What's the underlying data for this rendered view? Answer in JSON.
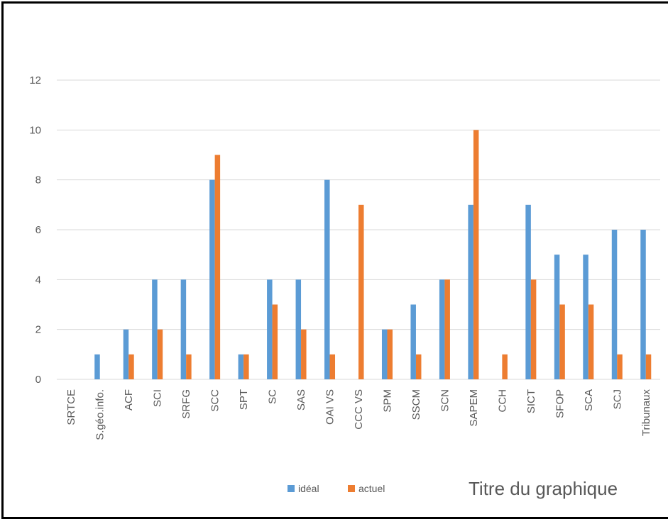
{
  "chart_data": {
    "type": "bar",
    "title": "Titre du graphique",
    "categories": [
      "SRTCE",
      "S.géo.info.",
      "ACF",
      "SCI",
      "SRFG",
      "SCC",
      "SPT",
      "SC",
      "SAS",
      "OAI VS",
      "CCC VS",
      "SPM",
      "SSCM",
      "SCN",
      "SAPEM",
      "CCH",
      "SICT",
      "SFOP",
      "SCA",
      "SCJ",
      "Tribunaux"
    ],
    "series": [
      {
        "name": "idéal",
        "color": "#5B9BD5",
        "values": [
          0,
          1,
          2,
          4,
          4,
          8,
          1,
          4,
          4,
          8,
          0,
          2,
          3,
          4,
          7,
          0,
          7,
          5,
          5,
          6,
          6
        ]
      },
      {
        "name": "actuel",
        "color": "#ED7D31",
        "values": [
          0,
          0,
          1,
          2,
          1,
          9,
          1,
          3,
          2,
          1,
          7,
          2,
          1,
          4,
          10,
          1,
          4,
          3,
          3,
          1,
          1
        ]
      }
    ],
    "ylim": [
      0,
      12
    ],
    "yticks": [
      0,
      2,
      4,
      6,
      8,
      10,
      12
    ],
    "grid": true,
    "legend_position": "bottom"
  }
}
